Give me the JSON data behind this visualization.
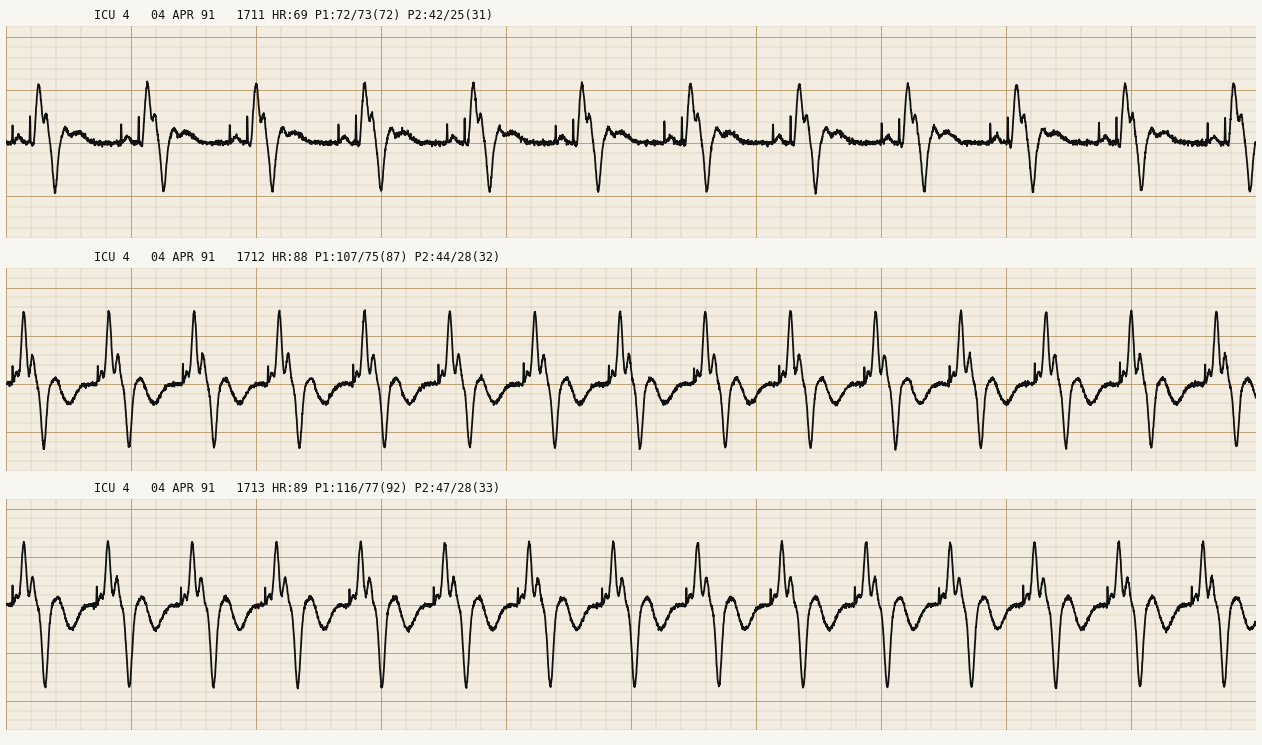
{
  "bg_color_paper": "#f2ede0",
  "bg_color_white": "#f8f6f0",
  "grid_minor_color": "#c8b89a",
  "grid_major_color": "#b8986a",
  "ecg_color": "#111111",
  "header_color": "#111111",
  "strip_labels": [
    "ICU 4   04 APR 91   1711 HR:69 P1:72/73(72) P2:42/25(31)",
    "ICU 4   04 APR 91   1712 HR:88 P1:107/75(87) P2:44/28(32)",
    "ICU 4   04 APR 91   1713 HR:89 P1:116/77(92) P2:47/28(33)"
  ],
  "figsize": [
    12.62,
    7.45
  ],
  "dpi": 100
}
